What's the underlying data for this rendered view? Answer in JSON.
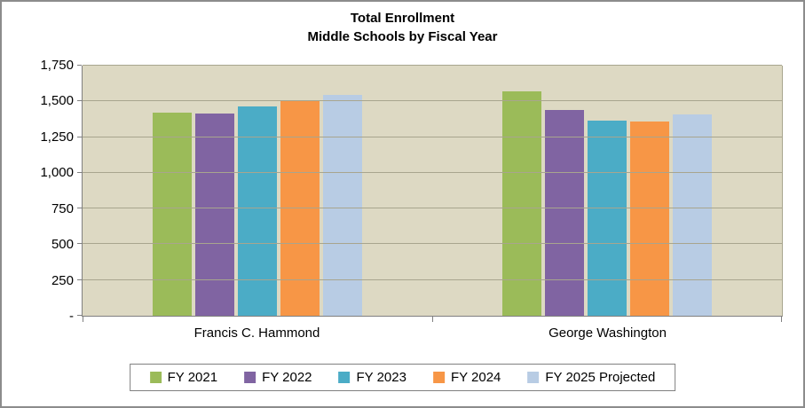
{
  "chart_data": {
    "type": "bar",
    "title_line1": "Total Enrollment",
    "title_line2": "Middle Schools by Fiscal Year",
    "categories": [
      "Francis C. Hammond",
      "George Washington"
    ],
    "series": [
      {
        "name": "FY 2021",
        "color": "#9BBB59",
        "values": [
          1424,
          1568
        ]
      },
      {
        "name": "FY 2022",
        "color": "#8064A2",
        "values": [
          1417,
          1442
        ]
      },
      {
        "name": "FY 2023",
        "color": "#4BACC6",
        "values": [
          1465,
          1365
        ]
      },
      {
        "name": "FY 2024",
        "color": "#F79646",
        "values": [
          1500,
          1358
        ]
      },
      {
        "name": "FY 2025 Projected",
        "color": "#B8CCE4",
        "values": [
          1546,
          1410
        ]
      }
    ],
    "xlabel": "",
    "ylabel": "",
    "ylim": [
      0,
      1750
    ],
    "yticks": [
      {
        "value": 0,
        "label": "-"
      },
      {
        "value": 250,
        "label": "250"
      },
      {
        "value": 500,
        "label": "500"
      },
      {
        "value": 750,
        "label": "750"
      },
      {
        "value": 1000,
        "label": "1,000"
      },
      {
        "value": 1250,
        "label": "1,250"
      },
      {
        "value": 1500,
        "label": "1,500"
      },
      {
        "value": 1750,
        "label": "1,750"
      }
    ],
    "grid": true,
    "legend_position": "bottom",
    "colors": {
      "plot_background": "#DDD9C3",
      "gridline": "#A8A58E",
      "axis": "#808080",
      "outer_border": "#8C8C8C",
      "text": "#000000"
    }
  }
}
